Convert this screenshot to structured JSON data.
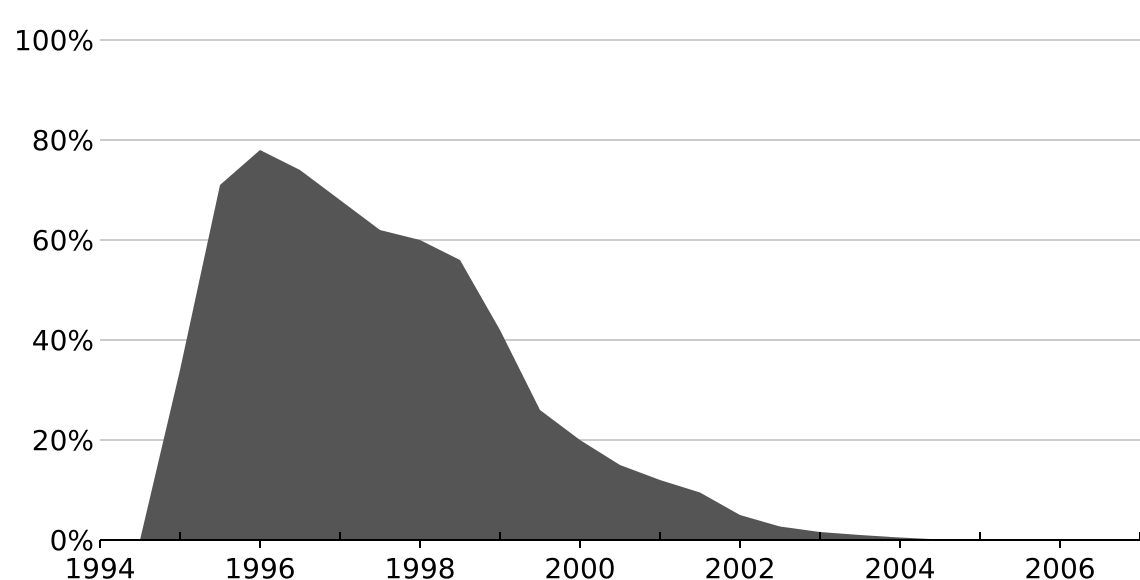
{
  "chart_data": {
    "type": "area",
    "title": "",
    "xlabel": "",
    "ylabel": "",
    "xlim": [
      1994,
      2007
    ],
    "ylim": [
      0,
      100
    ],
    "x_ticks": [
      1994,
      1996,
      1998,
      2000,
      2002,
      2004,
      2006
    ],
    "x_tick_labels": [
      "1994",
      "1996",
      "1998",
      "2000",
      "2002",
      "2004",
      "2006"
    ],
    "x_minor_ticks": [
      1995,
      1997,
      1999,
      2001,
      2003,
      2005,
      2007
    ],
    "y_ticks": [
      0,
      20,
      40,
      60,
      80,
      100
    ],
    "y_tick_labels": [
      "0%",
      "20%",
      "40%",
      "60%",
      "80%",
      "100%"
    ],
    "grid": "horizontal",
    "legend": "none",
    "series": [
      {
        "color": "#555555",
        "points": [
          {
            "x": 1994.5,
            "y": 0
          },
          {
            "x": 1995.0,
            "y": 34
          },
          {
            "x": 1995.5,
            "y": 71
          },
          {
            "x": 1996.0,
            "y": 78
          },
          {
            "x": 1996.5,
            "y": 74
          },
          {
            "x": 1997.0,
            "y": 68
          },
          {
            "x": 1997.5,
            "y": 62
          },
          {
            "x": 1998.0,
            "y": 60
          },
          {
            "x": 1998.5,
            "y": 56
          },
          {
            "x": 1999.0,
            "y": 42
          },
          {
            "x": 1999.5,
            "y": 26
          },
          {
            "x": 2000.0,
            "y": 20
          },
          {
            "x": 2000.5,
            "y": 15
          },
          {
            "x": 2001.0,
            "y": 12
          },
          {
            "x": 2001.5,
            "y": 9.5
          },
          {
            "x": 2002.0,
            "y": 5
          },
          {
            "x": 2002.5,
            "y": 2.7
          },
          {
            "x": 2003.0,
            "y": 1.6
          },
          {
            "x": 2003.5,
            "y": 1.0
          },
          {
            "x": 2004.0,
            "y": 0.5
          },
          {
            "x": 2004.5,
            "y": 0.1
          },
          {
            "x": 2005.0,
            "y": 0
          }
        ]
      }
    ],
    "colors": {
      "fill": "#555555",
      "gridline": "#cccccc",
      "axis": "#000000",
      "text": "#000000"
    }
  }
}
